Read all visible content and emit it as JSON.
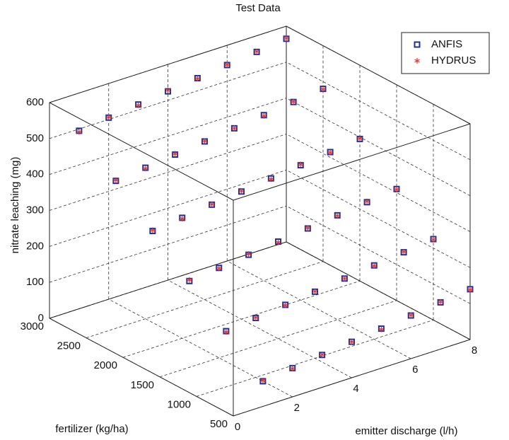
{
  "chart_data": {
    "type": "scatter3d",
    "title": "Test Data",
    "xlabel": "emitter discharge (l/h)",
    "ylabel": "fertilizer (kg/ha)",
    "zlabel": "nitrate leaching (mg)",
    "x": [
      1,
      2,
      3,
      4,
      5,
      6,
      7,
      8,
      1,
      2,
      3,
      4,
      5,
      6,
      7,
      8,
      1,
      2,
      3,
      4,
      5,
      6,
      7,
      8,
      1,
      2,
      3,
      4,
      5,
      6,
      7,
      8,
      1,
      2,
      3,
      4,
      5,
      6,
      7,
      8,
      1,
      2,
      3,
      4,
      5,
      6,
      7,
      8
    ],
    "y": [
      500,
      500,
      500,
      500,
      500,
      500,
      500,
      500,
      1000,
      1000,
      1000,
      1000,
      1000,
      1000,
      1000,
      1000,
      1500,
      1500,
      1500,
      1500,
      1500,
      1500,
      1500,
      1500,
      2000,
      2000,
      2000,
      2000,
      2000,
      2000,
      2000,
      2000,
      2500,
      2500,
      2500,
      2500,
      2500,
      2500,
      2500,
      2500,
      3000,
      3000,
      3000,
      3000,
      3000,
      3000,
      3000,
      3000
    ],
    "series": [
      {
        "name": "ANFIS",
        "color": "#1f2f9a",
        "marker": "square",
        "z": [
          70,
          80,
          90,
          100,
          110,
          120,
          130,
          140,
          155,
          165,
          175,
          185,
          195,
          205,
          215,
          225,
          240,
          250,
          260,
          270,
          280,
          290,
          300,
          310,
          325,
          335,
          345,
          355,
          365,
          375,
          385,
          395,
          410,
          420,
          430,
          440,
          450,
          460,
          470,
          480,
          495,
          505,
          515,
          525,
          535,
          545,
          555,
          565
        ]
      },
      {
        "name": "HYDRUS",
        "color": "#e8322d",
        "marker": "star",
        "z": [
          72,
          79,
          91,
          100,
          108,
          121,
          131,
          139,
          153,
          166,
          174,
          186,
          195,
          204,
          216,
          224,
          243,
          249,
          262,
          268,
          281,
          289,
          302,
          309,
          327,
          333,
          346,
          356,
          363,
          377,
          384,
          396,
          412,
          418,
          432,
          441,
          450,
          458,
          471,
          479,
          492,
          506,
          513,
          528,
          534,
          546,
          556,
          566
        ]
      }
    ],
    "xlim": [
      0,
      8
    ],
    "xticks": [
      0,
      2,
      4,
      6,
      8
    ],
    "ylim": [
      500,
      3000
    ],
    "yticks": [
      500,
      1000,
      1500,
      2000,
      2500,
      3000
    ],
    "zlim": [
      0,
      600
    ],
    "zticks": [
      0,
      100,
      200,
      300,
      400,
      500,
      600
    ],
    "grid": true,
    "box": true,
    "legend": "northeast"
  }
}
